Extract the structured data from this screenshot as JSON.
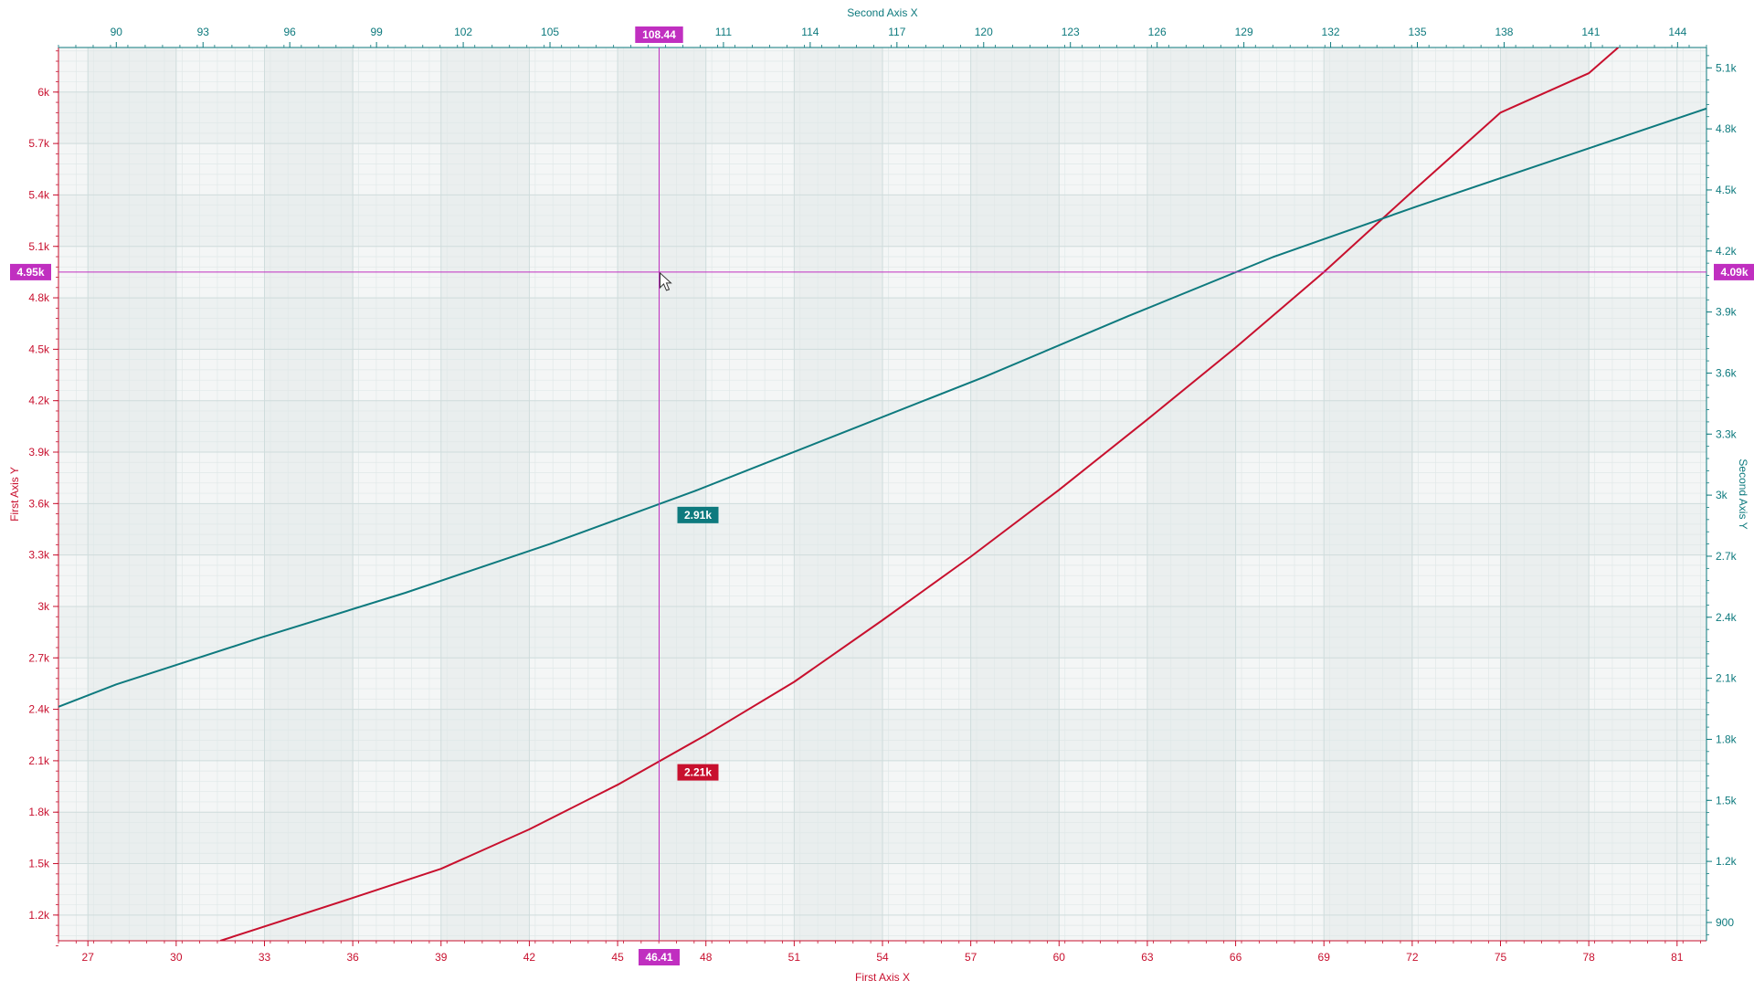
{
  "chart_data": {
    "type": "line",
    "axes": {
      "first_x": {
        "title": "First Axis X",
        "range": [
          26,
          82
        ],
        "ticks": [
          27,
          30,
          33,
          36,
          39,
          42,
          45,
          48,
          51,
          54,
          57,
          60,
          63,
          66,
          69,
          72,
          75,
          78,
          81
        ],
        "tick_labels": [
          "27",
          "30",
          "33",
          "36",
          "39",
          "42",
          "45",
          "48",
          "51",
          "54",
          "57",
          "60",
          "63",
          "66",
          "69",
          "72",
          "75",
          "78",
          "81"
        ]
      },
      "first_y": {
        "title": "First Axis Y",
        "range": [
          1050,
          6260
        ],
        "ticks": [
          1200,
          1500,
          1800,
          2100,
          2400,
          2700,
          3000,
          3300,
          3600,
          3900,
          4200,
          4500,
          4800,
          5100,
          5400,
          5700,
          6000
        ],
        "tick_labels": [
          "1.2k",
          "1.5k",
          "1.8k",
          "2.1k",
          "2.4k",
          "2.7k",
          "3k",
          "3.3k",
          "3.6k",
          "3.9k",
          "4.2k",
          "4.5k",
          "4.8k",
          "5.1k",
          "5.4k",
          "5.7k",
          "6k"
        ]
      },
      "second_x": {
        "title": "Second Axis X",
        "range": [
          88,
          145
        ],
        "ticks": [
          90,
          93,
          96,
          99,
          102,
          105,
          111,
          114,
          117,
          120,
          123,
          126,
          129,
          132,
          135,
          138,
          141,
          144
        ],
        "tick_labels": [
          "90",
          "93",
          "96",
          "99",
          "102",
          "105",
          "111",
          "114",
          "117",
          "120",
          "123",
          "126",
          "129",
          "132",
          "135",
          "138",
          "141",
          "144"
        ]
      },
      "second_y": {
        "title": "Second Axis Y",
        "range": [
          810,
          5200
        ],
        "ticks": [
          900,
          1200,
          1500,
          1800,
          2100,
          2400,
          2700,
          3000,
          3300,
          3600,
          3900,
          4200,
          4500,
          4800,
          5100
        ],
        "tick_labels": [
          "900",
          "1.2k",
          "1.5k",
          "1.8k",
          "2.1k",
          "2.4k",
          "2.7k",
          "3k",
          "3.3k",
          "3.6k",
          "3.9k",
          "4.2k",
          "4.5k",
          "4.8k",
          "5.1k"
        ]
      }
    },
    "series": [
      {
        "color": "#c8102e",
        "axes": "first",
        "x": [
          31.5,
          36,
          39,
          42,
          45,
          48,
          51,
          54,
          57,
          60,
          63,
          66,
          69,
          72,
          75,
          78,
          79
        ],
        "y": [
          1050,
          1300,
          1470,
          1700,
          1960,
          2250,
          2560,
          2920,
          3290,
          3680,
          4090,
          4510,
          4950,
          5420,
          5880,
          6110,
          6260
        ]
      },
      {
        "color": "#0e7a7e",
        "axes": "second",
        "x": [
          88,
          90,
          95,
          100,
          105,
          110,
          115,
          120,
          125,
          130,
          135,
          140,
          145
        ],
        "y": [
          1960,
          2070,
          2300,
          2520,
          2760,
          3020,
          3300,
          3580,
          3880,
          4170,
          4420,
          4660,
          4900
        ]
      }
    ],
    "crosshair": {
      "color": "#c02fc0",
      "first_x": 46.41,
      "first_x_label": "46.41",
      "second_x": 108.44,
      "second_x_label": "108.44",
      "first_y": 4950,
      "first_y_label": "4.95k",
      "second_y": 4090,
      "second_y_label": "4.09k"
    },
    "value_labels": [
      {
        "text": "2.91k",
        "color": "#0e7a7e",
        "series": 1,
        "at_first_x": 46.41
      },
      {
        "text": "2.21k",
        "color": "#c8102e",
        "series": 0,
        "at_first_x": 46.41
      }
    ],
    "grid": true
  },
  "colors": {
    "first_axis": "#c8102e",
    "second_axis": "#0e7a7e",
    "crosshair": "#c02fc0",
    "plot_bg": "#f4f6f6",
    "band_bg": "#e8eded",
    "grid_major": "#cfdcdc",
    "grid_minor": "#e0e8e8"
  },
  "cursor_icon": "arrow-cursor-icon"
}
